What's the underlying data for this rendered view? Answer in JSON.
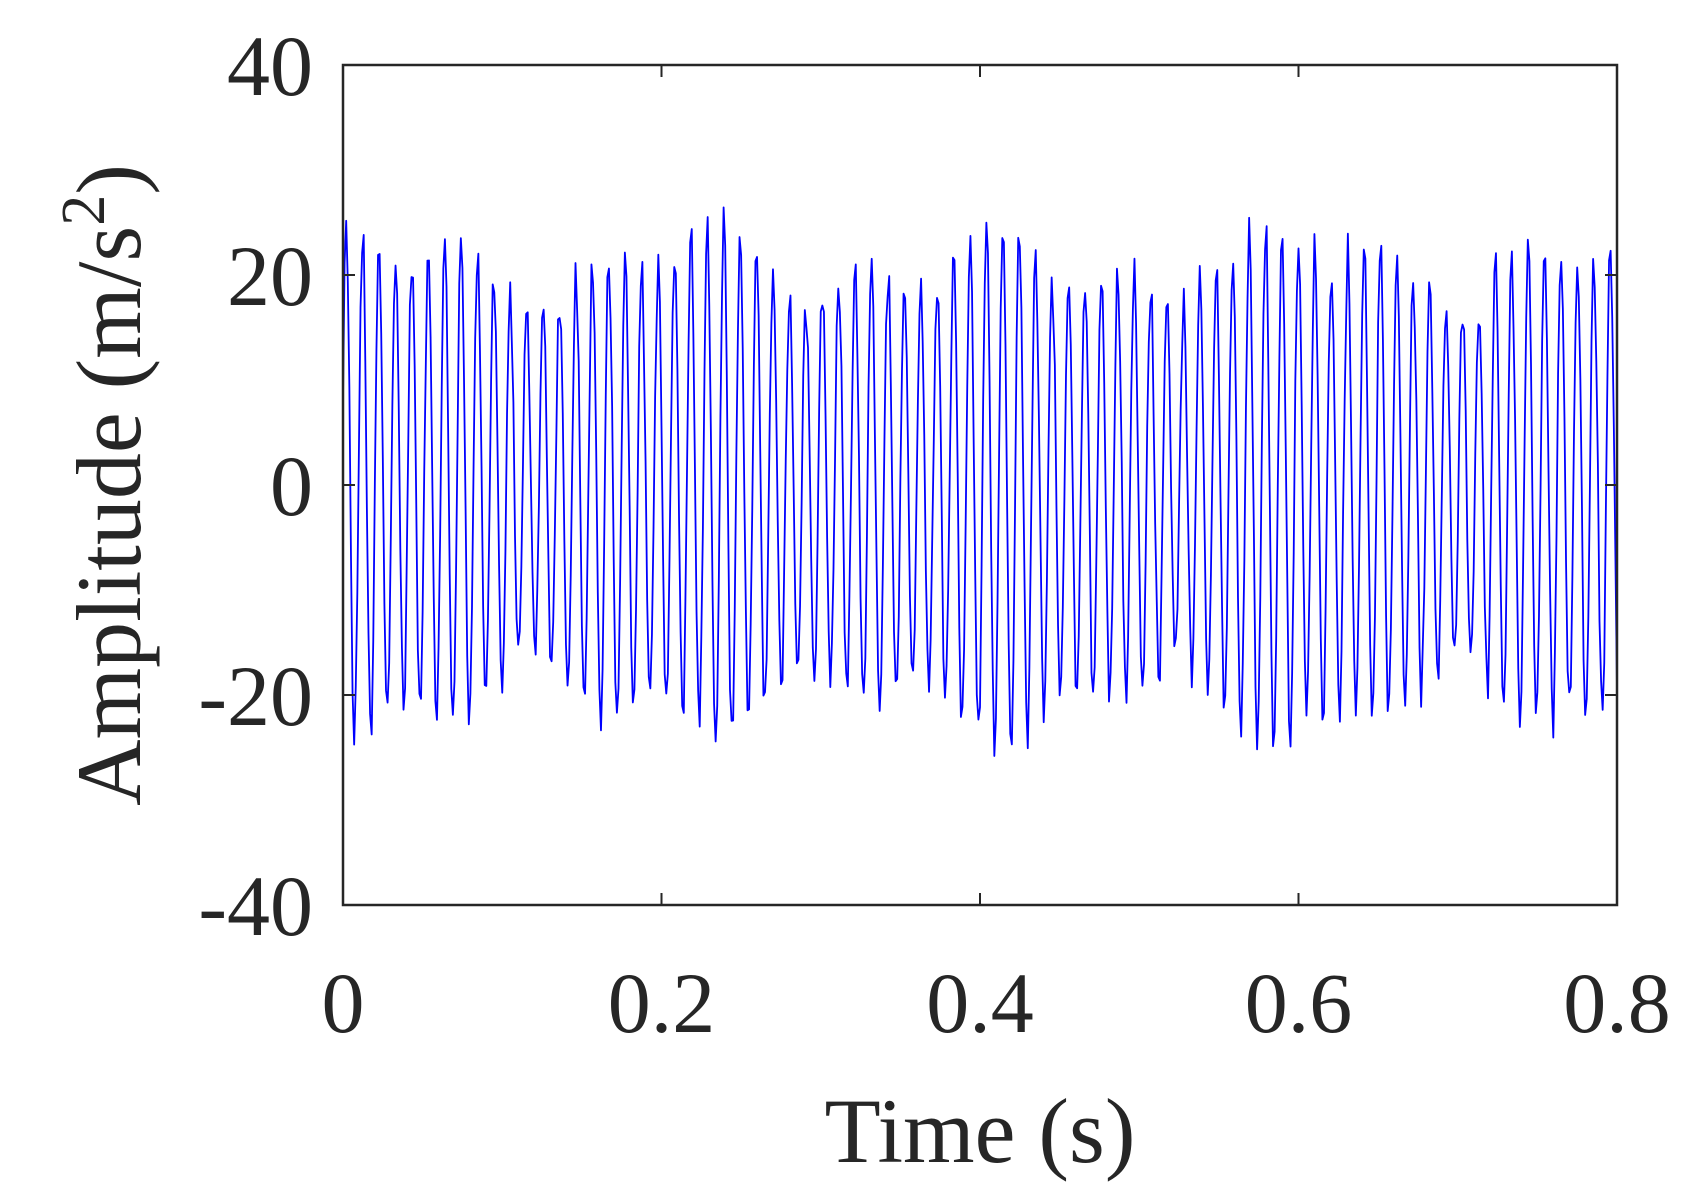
{
  "chart_data": {
    "type": "line",
    "title": "",
    "xlabel": "Time (s)",
    "ylabel_main": "Amplitude (m/s",
    "ylabel_sup": "2",
    "ylabel_close": ")",
    "xlim": [
      0,
      0.8
    ],
    "ylim": [
      -40,
      40
    ],
    "xticks": [
      0,
      0.2,
      0.4,
      0.6,
      0.8
    ],
    "xtick_labels": [
      "0",
      "0.2",
      "0.4",
      "0.6",
      "0.8"
    ],
    "yticks": [
      -40,
      -20,
      0,
      20,
      40
    ],
    "ytick_labels": [
      "-40",
      "-20",
      "0",
      "20",
      "40"
    ],
    "grid": false,
    "legend": "none",
    "series": [
      {
        "color": "#0000ff",
        "signal": {
          "sample_rate_hz": 1000,
          "duration_s": 0.8,
          "carrier_freq_hz": 97,
          "base_amplitude": 21,
          "modulation_depth": 5,
          "modulation_freq_hz": 5.25,
          "peak_range": [
            -31,
            29
          ]
        }
      }
    ]
  }
}
